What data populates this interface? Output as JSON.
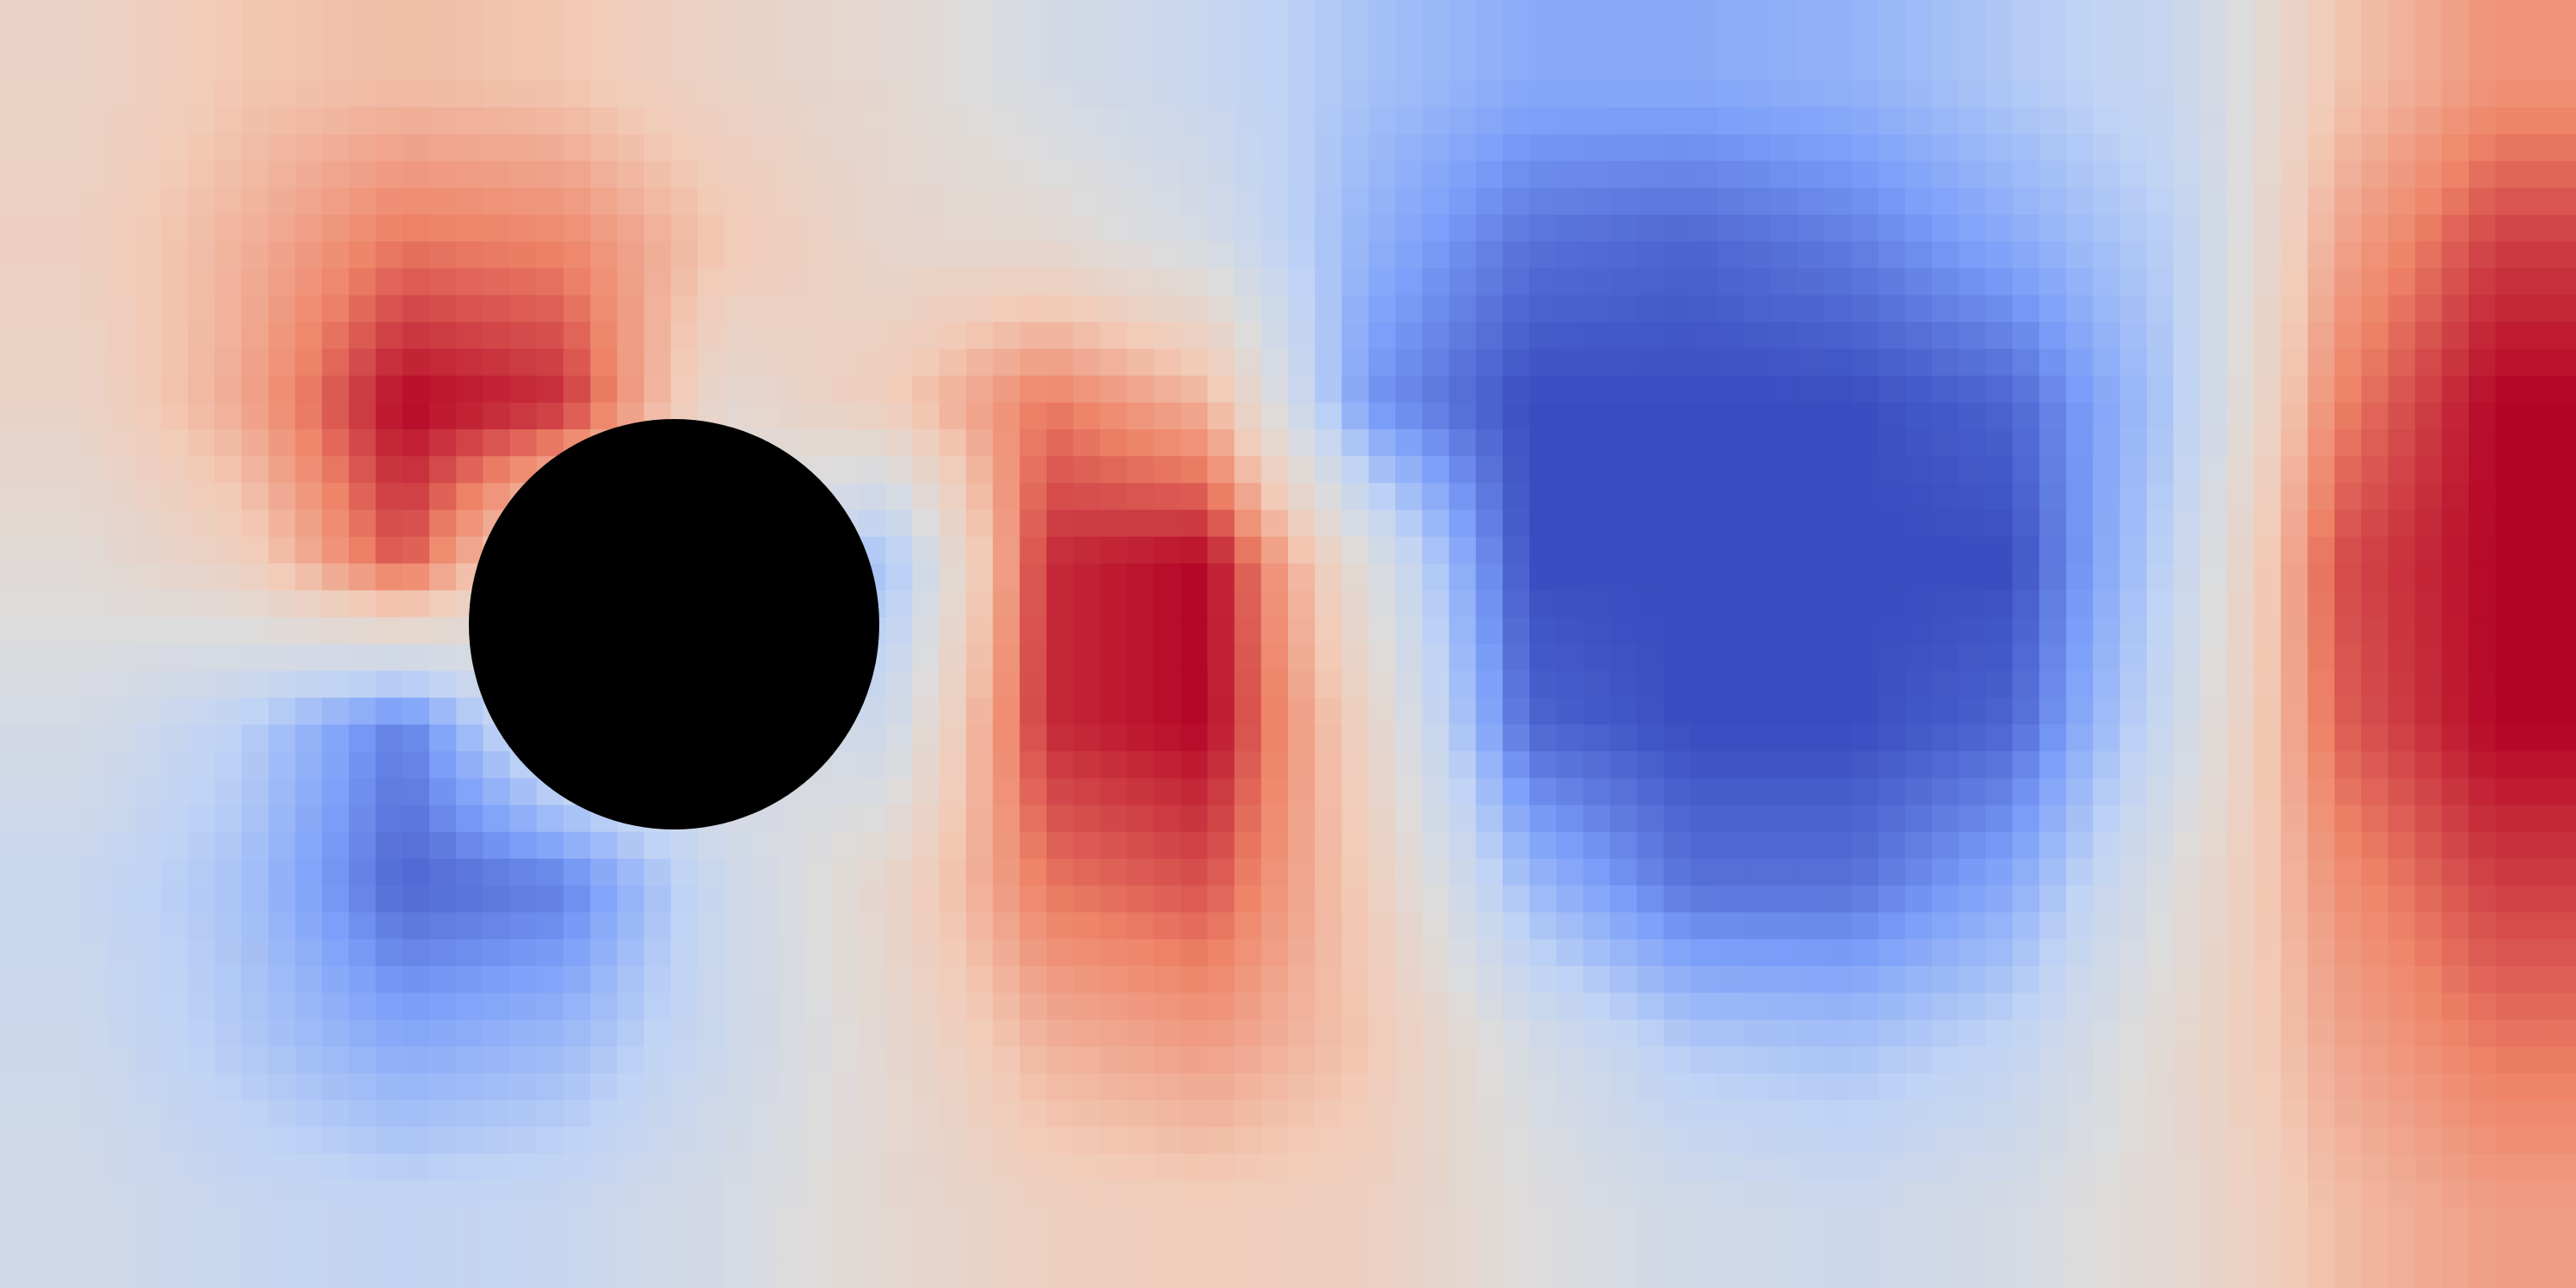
{
  "chart_data": {
    "type": "heatmap",
    "title": "",
    "xlabel": "",
    "ylabel": "",
    "grid": false,
    "legend": "none",
    "colormap": {
      "name": "coolwarm",
      "stops": [
        "#3a4cc0",
        "#7b9ff9",
        "#c0d4f5",
        "#dddcdc",
        "#f2cbb7",
        "#ee8468",
        "#b40426"
      ]
    },
    "obstacle": {
      "shape": "circle",
      "color": "#000000"
    },
    "rows": 8,
    "cols": 16,
    "values": [
      [
        0.2,
        0.35,
        0.4,
        0.35,
        0.2,
        0.1,
        -0.1,
        -0.25,
        -0.45,
        -0.6,
        -0.6,
        -0.55,
        -0.4,
        -0.25,
        0.35,
        0.6
      ],
      [
        0.25,
        0.45,
        0.7,
        0.65,
        0.35,
        0.15,
        0.1,
        -0.1,
        -0.55,
        -0.85,
        -0.9,
        -0.8,
        -0.6,
        -0.35,
        0.5,
        0.85
      ],
      [
        0.2,
        0.5,
        1.0,
        0.9,
        0.1,
        0.3,
        0.7,
        0.45,
        -0.7,
        -1.0,
        -1.0,
        -1.0,
        -0.9,
        -0.4,
        0.65,
        1.0
      ],
      [
        0.05,
        0.25,
        0.8,
        0.0,
        0.0,
        -0.5,
        0.9,
        1.0,
        0.0,
        -1.0,
        -1.0,
        -1.0,
        -1.0,
        -0.3,
        0.8,
        1.0
      ],
      [
        -0.1,
        -0.35,
        -0.8,
        0.0,
        0.0,
        -0.2,
        0.9,
        1.0,
        0.2,
        -0.9,
        -1.0,
        -1.0,
        -0.9,
        -0.2,
        0.75,
        1.0
      ],
      [
        -0.25,
        -0.45,
        -0.9,
        -0.8,
        -0.2,
        0.15,
        0.7,
        0.8,
        0.3,
        -0.5,
        -0.85,
        -0.85,
        -0.6,
        0.0,
        0.6,
        0.85
      ],
      [
        -0.2,
        -0.4,
        -0.6,
        -0.5,
        -0.2,
        0.1,
        0.45,
        0.55,
        0.35,
        -0.1,
        -0.4,
        -0.45,
        -0.3,
        0.1,
        0.5,
        0.7
      ],
      [
        -0.15,
        -0.25,
        -0.3,
        -0.25,
        -0.1,
        0.1,
        0.25,
        0.3,
        0.25,
        0.0,
        -0.15,
        -0.2,
        -0.1,
        0.1,
        0.4,
        0.55
      ]
    ]
  }
}
